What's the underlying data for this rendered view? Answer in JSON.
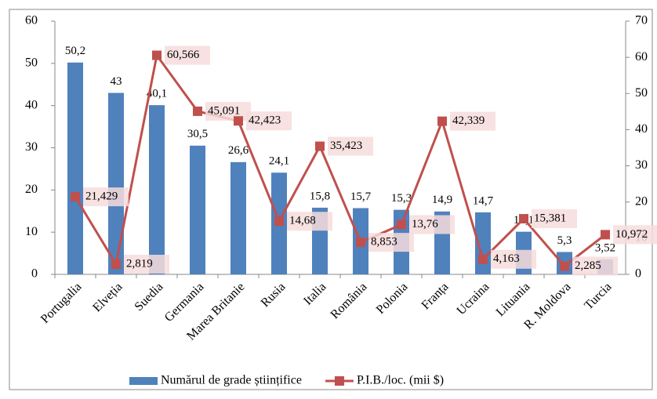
{
  "chart_data": {
    "type": "bar",
    "categories": [
      "Portugalia",
      "Elveția",
      "Suedia",
      "Germania",
      "Marea Britanie",
      "Rusia",
      "Italia",
      "România",
      "Polonia",
      "Franța",
      "Ucraina",
      "Lituania",
      "R. Moldova",
      "Turcia"
    ],
    "series": [
      {
        "name": "Numărul de grade științifice",
        "type": "bar",
        "color": "#4f81bd",
        "values": [
          50.2,
          43,
          40.1,
          30.5,
          26.6,
          24.1,
          15.8,
          15.7,
          15.3,
          14.9,
          14.7,
          10.1,
          5.3,
          3.52
        ],
        "value_labels": [
          "50,2",
          "43",
          "40,1",
          "30,5",
          "26,6",
          "24,1",
          "15,8",
          "15,7",
          "15,3",
          "14,9",
          "14,7",
          "10,1",
          "5,3",
          "3,52"
        ]
      },
      {
        "name": "P.I.B./loc. (mii $)",
        "type": "line",
        "color": "#c0504d",
        "axis": "y2",
        "values": [
          21.429,
          2.819,
          60.566,
          45.091,
          42.423,
          14.68,
          35.423,
          8.853,
          13.76,
          42.339,
          4.163,
          15.381,
          2.285,
          10.972
        ],
        "value_labels": [
          "21,429",
          "2,819",
          "60,566",
          "45,091",
          "42,423",
          "14,68",
          "35,423",
          "8,853",
          "13,76",
          "42,339",
          "4,163",
          "15,381",
          "2,285",
          "10,972"
        ]
      }
    ],
    "ylim": [
      0,
      60
    ],
    "yticks": [
      0,
      10,
      20,
      30,
      40,
      50,
      60
    ],
    "y2lim": [
      0,
      70
    ],
    "y2ticks": [
      0,
      10,
      20,
      30,
      40,
      50,
      60,
      70
    ],
    "legend": "bottom"
  }
}
